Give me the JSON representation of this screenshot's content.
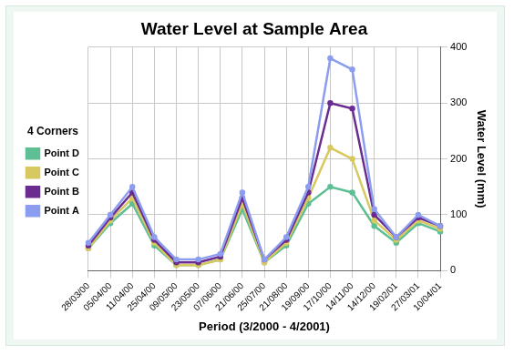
{
  "chart_data": {
    "type": "line",
    "title": "Water Level at Sample Area",
    "x_label": "Period (3/2000 - 4/2001)",
    "y_label": "Water Level (mm)",
    "z_label": "4 Corners",
    "categories": [
      "28/03/00",
      "05/04/00",
      "11/04/00",
      "25/04/00",
      "09/05/00",
      "23/05/00",
      "07/06/00",
      "21/06/00",
      "25/07/00",
      "21/08/00",
      "19/09/00",
      "17/10/00",
      "14/11/00",
      "14/12/00",
      "19/02/01",
      "27/03/01",
      "10/04/01"
    ],
    "series": [
      {
        "name": "Point A",
        "color": "#8c9df0",
        "values": [
          50,
          100,
          150,
          60,
          20,
          20,
          30,
          140,
          20,
          60,
          150,
          380,
          360,
          110,
          60,
          100,
          80
        ]
      },
      {
        "name": "Point B",
        "color": "#6b2c8f",
        "values": [
          45,
          95,
          140,
          55,
          15,
          15,
          25,
          130,
          20,
          55,
          140,
          300,
          290,
          100,
          60,
          95,
          80
        ]
      },
      {
        "name": "Point C",
        "color": "#d8c860",
        "values": [
          40,
          90,
          130,
          50,
          10,
          10,
          20,
          120,
          15,
          50,
          130,
          220,
          200,
          90,
          55,
          90,
          75
        ]
      },
      {
        "name": "Point D",
        "color": "#5fbf94",
        "values": [
          40,
          85,
          120,
          45,
          10,
          10,
          20,
          110,
          15,
          45,
          120,
          150,
          140,
          80,
          50,
          85,
          70
        ]
      }
    ],
    "ylim": [
      0,
      400
    ],
    "yticks": [
      0,
      100,
      200,
      300,
      400
    ],
    "grid": true,
    "legend": "left"
  }
}
